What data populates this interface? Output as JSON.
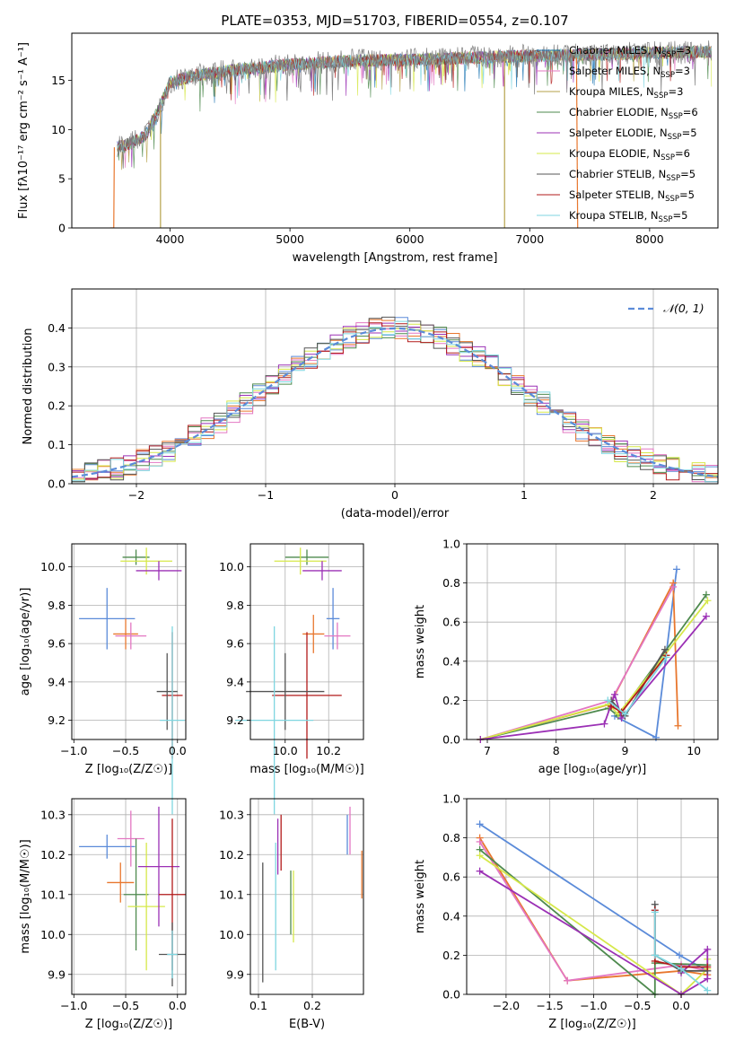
{
  "figure_title": "PLATE=0353, MJD=51703, FIBERID=0554, z=0.107",
  "colors": {
    "Chabrier MILES": "#1f77b4",
    "Salpeter MILES": "#e377c2",
    "Kroupa MILES": "#b5a24a",
    "Chabrier ELODIE": "#4e8a4e",
    "Salpeter ELODIE": "#9b30b5",
    "Kroupa ELODIE": "#d6e84a",
    "Chabrier STELIB": "#555555",
    "Salpeter STELIB": "#b21a1a",
    "Kroupa STELIB": "#7fd6e0",
    "data": "#808080",
    "orange": "#e8772e",
    "blue": "#5b8bd9",
    "grid": "#b0b0b0"
  },
  "chart_data": [
    {
      "type": "line",
      "title": "PLATE=0353, MJD=51703, FIBERID=0554, z=0.107",
      "xlabel": "wavelength [Angstrom, rest frame]",
      "ylabel": "Flux [fλ10⁻¹⁷ erg cm⁻² s⁻¹ A⁻¹]",
      "xlim": [
        3180,
        8570
      ],
      "ylim": [
        0,
        19.8
      ],
      "xticks": [
        4000,
        5000,
        6000,
        7000,
        8000
      ],
      "yticks": [
        0,
        5,
        10,
        15
      ],
      "grid": false,
      "legend_position": "right",
      "series": [
        {
          "name": "Chabrier MILES, N_SSP=3",
          "color": "#1f77b4"
        },
        {
          "name": "Salpeter MILES, N_SSP=3",
          "color": "#e377c2"
        },
        {
          "name": "Kroupa MILES, N_SSP=3",
          "color": "#b5a24a"
        },
        {
          "name": "Chabrier ELODIE, N_SSP=6",
          "color": "#4e8a4e"
        },
        {
          "name": "Salpeter ELODIE, N_SSP=5",
          "color": "#9b30b5"
        },
        {
          "name": "Kroupa ELODIE, N_SSP=6",
          "color": "#d6e84a"
        },
        {
          "name": "Chabrier STELIB, N_SSP=5",
          "color": "#555555"
        },
        {
          "name": "Salpeter STELIB, N_SSP=5",
          "color": "#b21a1a"
        },
        {
          "name": "Kroupa STELIB, N_SSP=5",
          "color": "#7fd6e0"
        }
      ],
      "continuum": {
        "x": [
          3500,
          3650,
          3800,
          3900,
          4000,
          4200,
          4500,
          5000,
          5500,
          6000,
          6500,
          7000,
          7500,
          8000,
          8500
        ],
        "y": [
          8.2,
          8.5,
          9.5,
          12,
          14.8,
          15.5,
          16.0,
          16.6,
          17.0,
          17.1,
          17.3,
          17.5,
          17.6,
          17.8,
          17.9
        ]
      }
    },
    {
      "type": "line",
      "xlabel": "(data-model)/error",
      "ylabel": "Normed distribution",
      "xlim": [
        -2.5,
        2.5
      ],
      "ylim": [
        0,
        0.5
      ],
      "xticks": [
        -2,
        -1,
        0,
        1,
        2
      ],
      "yticks": [
        0.0,
        0.1,
        0.2,
        0.3,
        0.4
      ],
      "grid": true,
      "legend_position": "top-right",
      "series": [
        {
          "name": "𝒩(0, 1)",
          "color": "#5b8bd9",
          "style": "dashed"
        }
      ]
    },
    {
      "type": "scatter",
      "xlabel": "Z [log₁₀(Z/Z☉)]",
      "ylabel": "age [log₁₀(age/yr)]",
      "xlim": [
        -1.02,
        0.08
      ],
      "ylim": [
        9.1,
        10.12
      ],
      "xticks": [
        -1.0,
        -0.5,
        0.0
      ],
      "yticks": [
        9.2,
        9.4,
        9.6,
        9.8,
        10.0
      ],
      "grid": true,
      "errorbars": [
        {
          "color": "#5b8bd9",
          "x": -0.68,
          "xerr": 0.27,
          "y": 9.73,
          "yerr": 0.16
        },
        {
          "color": "#e8772e",
          "x": -0.5,
          "xerr": 0.12,
          "y": 9.65,
          "yerr": 0.08
        },
        {
          "color": "#e377c2",
          "x": -0.45,
          "xerr": 0.15,
          "y": 9.64,
          "yerr": 0.07
        },
        {
          "color": "#4e8a4e",
          "x": -0.4,
          "xerr": 0.13,
          "y": 10.05,
          "yerr": 0.04
        },
        {
          "color": "#d6e84a",
          "x": -0.3,
          "xerr": 0.25,
          "y": 10.03,
          "yerr": 0.07
        },
        {
          "color": "#9b30b5",
          "x": -0.18,
          "xerr": 0.22,
          "y": 9.98,
          "yerr": 0.05
        },
        {
          "color": "#b21a1a",
          "x": -0.05,
          "xerr": 0.1,
          "y": 9.33,
          "yerr": 0.33
        },
        {
          "color": "#555555",
          "x": -0.1,
          "xerr": 0.1,
          "y": 9.35,
          "yerr": 0.2
        },
        {
          "color": "#7fd6e0",
          "x": -0.05,
          "xerr": 0.12,
          "y": 9.2,
          "yerr": 0.49
        }
      ]
    },
    {
      "type": "scatter",
      "xlabel": "mass [log₁₀(M/M☉)]",
      "ylabel": "",
      "xlim": [
        9.84,
        10.36
      ],
      "ylim": [
        9.1,
        10.12
      ],
      "xticks": [
        10.0,
        10.2
      ],
      "yticks": [
        9.2,
        9.4,
        9.6,
        9.8,
        10.0
      ],
      "grid": true,
      "errorbars": [
        {
          "color": "#5b8bd9",
          "x": 10.22,
          "xerr": 0.03,
          "y": 9.73,
          "yerr": 0.16
        },
        {
          "color": "#e8772e",
          "x": 10.13,
          "xerr": 0.05,
          "y": 9.65,
          "yerr": 0.1
        },
        {
          "color": "#e377c2",
          "x": 10.24,
          "xerr": 0.06,
          "y": 9.64,
          "yerr": 0.07
        },
        {
          "color": "#4e8a4e",
          "x": 10.1,
          "xerr": 0.1,
          "y": 10.05,
          "yerr": 0.04
        },
        {
          "color": "#d6e84a",
          "x": 10.07,
          "xerr": 0.12,
          "y": 10.03,
          "yerr": 0.07
        },
        {
          "color": "#9b30b5",
          "x": 10.17,
          "xerr": 0.09,
          "y": 9.98,
          "yerr": 0.05
        },
        {
          "color": "#b21a1a",
          "x": 10.1,
          "xerr": 0.16,
          "y": 9.33,
          "yerr": 0.33
        },
        {
          "color": "#555555",
          "x": 10.0,
          "xerr": 0.18,
          "y": 9.35,
          "yerr": 0.2
        },
        {
          "color": "#7fd6e0",
          "x": 9.95,
          "xerr": 0.18,
          "y": 9.2,
          "yerr": 0.49
        }
      ]
    },
    {
      "type": "line",
      "xlabel": "age [log₁₀(age/yr)]",
      "ylabel": "mass weight",
      "xlim": [
        6.7,
        10.35
      ],
      "ylim": [
        0,
        1.0
      ],
      "xticks": [
        7,
        8,
        9,
        10
      ],
      "yticks": [
        0.0,
        0.2,
        0.4,
        0.6,
        0.8,
        1.0
      ],
      "grid": true,
      "series": [
        {
          "color": "#5b8bd9",
          "x": [
            8.85,
            9.45,
            9.75
          ],
          "y": [
            0.12,
            0.01,
            0.87
          ]
        },
        {
          "color": "#e8772e",
          "x": [
            6.9,
            8.78,
            9.7,
            9.77
          ],
          "y": [
            0.0,
            0.18,
            0.8,
            0.07
          ]
        },
        {
          "color": "#e377c2",
          "x": [
            6.9,
            8.8,
            9.7
          ],
          "y": [
            0.0,
            0.2,
            0.78
          ]
        },
        {
          "color": "#4e8a4e",
          "x": [
            6.9,
            8.76,
            8.9,
            10.18
          ],
          "y": [
            0.0,
            0.16,
            0.12,
            0.74
          ]
        },
        {
          "color": "#d6e84a",
          "x": [
            6.9,
            8.76,
            8.9,
            10.2
          ],
          "y": [
            0.0,
            0.18,
            0.13,
            0.71
          ]
        },
        {
          "color": "#9b30b5",
          "x": [
            6.9,
            8.7,
            8.85,
            8.95,
            10.18
          ],
          "y": [
            0.0,
            0.08,
            0.23,
            0.11,
            0.63
          ]
        },
        {
          "color": "#555555",
          "x": [
            8.8,
            9.0,
            9.58
          ],
          "y": [
            0.2,
            0.12,
            0.46
          ]
        },
        {
          "color": "#b21a1a",
          "x": [
            8.8,
            8.95,
            9.6
          ],
          "y": [
            0.17,
            0.14,
            0.43
          ]
        },
        {
          "color": "#7fd6e0",
          "x": [
            8.75,
            9.0,
            9.6
          ],
          "y": [
            0.2,
            0.13,
            0.42
          ]
        }
      ]
    },
    {
      "type": "scatter",
      "xlabel": "Z [log₁₀(Z/Z☉)]",
      "ylabel": "mass [log₁₀(M/M☉)]",
      "xlim": [
        -1.02,
        0.08
      ],
      "ylim": [
        9.85,
        10.34
      ],
      "xticks": [
        -1.0,
        -0.5,
        0.0
      ],
      "yticks": [
        9.9,
        10.0,
        10.1,
        10.2,
        10.3
      ],
      "grid": true,
      "errorbars": [
        {
          "color": "#5b8bd9",
          "x": -0.68,
          "xerr": 0.27,
          "y": 10.22,
          "yerr": 0.03
        },
        {
          "color": "#e8772e",
          "x": -0.55,
          "xerr": 0.13,
          "y": 10.13,
          "yerr": 0.05
        },
        {
          "color": "#e377c2",
          "x": -0.45,
          "xerr": 0.13,
          "y": 10.24,
          "yerr": 0.07
        },
        {
          "color": "#4e8a4e",
          "x": -0.4,
          "xerr": 0.12,
          "y": 10.1,
          "yerr": 0.14
        },
        {
          "color": "#d6e84a",
          "x": -0.3,
          "xerr": 0.18,
          "y": 10.07,
          "yerr": 0.16
        },
        {
          "color": "#9b30b5",
          "x": -0.18,
          "xerr": 0.2,
          "y": 10.17,
          "yerr": 0.15
        },
        {
          "color": "#b21a1a",
          "x": -0.05,
          "xerr": 0.13,
          "y": 10.1,
          "yerr": 0.19
        },
        {
          "color": "#555555",
          "x": -0.05,
          "xerr": 0.13,
          "y": 9.95,
          "yerr": 0.08
        },
        {
          "color": "#7fd6e0",
          "x": -0.05,
          "xerr": 0.05,
          "y": 9.95,
          "yerr": 0.06
        }
      ]
    },
    {
      "type": "scatter",
      "xlabel": "E(B-V)",
      "ylabel": "",
      "xlim": [
        0.085,
        0.295
      ],
      "ylim": [
        9.85,
        10.34
      ],
      "xticks": [
        0.1,
        0.2
      ],
      "yticks": [
        9.9,
        10.0,
        10.1,
        10.2,
        10.3
      ],
      "grid": true,
      "errorbars": [
        {
          "color": "#555555",
          "x": 0.108,
          "y": 10.03,
          "yerr": 0.15
        },
        {
          "color": "#7fd6e0",
          "x": 0.132,
          "y": 10.07,
          "yerr": 0.16
        },
        {
          "color": "#9b30b5",
          "x": 0.136,
          "y": 10.22,
          "yerr": 0.07
        },
        {
          "color": "#b21a1a",
          "x": 0.142,
          "y": 10.23,
          "yerr": 0.07
        },
        {
          "color": "#4e8a4e",
          "x": 0.16,
          "y": 10.08,
          "yerr": 0.08
        },
        {
          "color": "#d6e84a",
          "x": 0.165,
          "y": 10.07,
          "yerr": 0.09
        },
        {
          "color": "#5b8bd9",
          "x": 0.265,
          "y": 10.25,
          "yerr": 0.05
        },
        {
          "color": "#e377c2",
          "x": 0.27,
          "y": 10.26,
          "yerr": 0.06
        },
        {
          "color": "#e8772e",
          "x": 0.292,
          "y": 10.15,
          "yerr": 0.06
        }
      ]
    },
    {
      "type": "line",
      "xlabel": "Z [log₁₀(Z/Z☉)]",
      "ylabel": "mass weight",
      "xlim": [
        -2.45,
        0.42
      ],
      "ylim": [
        0,
        1.0
      ],
      "xticks": [
        -2.0,
        -1.5,
        -1.0,
        -0.5,
        0.0
      ],
      "yticks": [
        0.0,
        0.2,
        0.4,
        0.6,
        0.8,
        1.0
      ],
      "grid": true,
      "series": [
        {
          "color": "#5b8bd9",
          "x": [
            -2.3,
            -0.02,
            0.3
          ],
          "y": [
            0.87,
            0.2,
            0.12
          ]
        },
        {
          "color": "#e8772e",
          "x": [
            -2.3,
            -1.3,
            0.0,
            0.3
          ],
          "y": [
            0.8,
            0.07,
            0.12,
            0.1
          ]
        },
        {
          "color": "#e377c2",
          "x": [
            -2.3,
            -1.3,
            0.0,
            0.3
          ],
          "y": [
            0.78,
            0.07,
            0.15,
            0.12
          ]
        },
        {
          "color": "#4e8a4e",
          "x": [
            -2.3,
            -0.3,
            -0.3,
            0.3
          ],
          "y": [
            0.74,
            0.0,
            0.16,
            0.15
          ]
        },
        {
          "color": "#d6e84a",
          "x": [
            -2.3,
            0.0,
            0.3,
            0.3
          ],
          "y": [
            0.71,
            0.0,
            0.13,
            0.18
          ]
        },
        {
          "color": "#9b30b5",
          "x": [
            -2.3,
            0.0,
            0.3,
            0.3,
            0.0
          ],
          "y": [
            0.63,
            0.0,
            0.08,
            0.23,
            0.11
          ]
        },
        {
          "color": "#555555",
          "x": [
            -0.3,
            -0.3,
            0.0,
            0.3
          ],
          "y": [
            0.46,
            0.2,
            0.12,
            0.12
          ]
        },
        {
          "color": "#b21a1a",
          "x": [
            -0.3,
            -0.3,
            0.0,
            0.3
          ],
          "y": [
            0.43,
            0.17,
            0.14,
            0.14
          ]
        },
        {
          "color": "#7fd6e0",
          "x": [
            -0.3,
            -0.3,
            0.0,
            0.3
          ],
          "y": [
            0.42,
            0.2,
            0.13,
            0.02
          ]
        }
      ]
    }
  ]
}
